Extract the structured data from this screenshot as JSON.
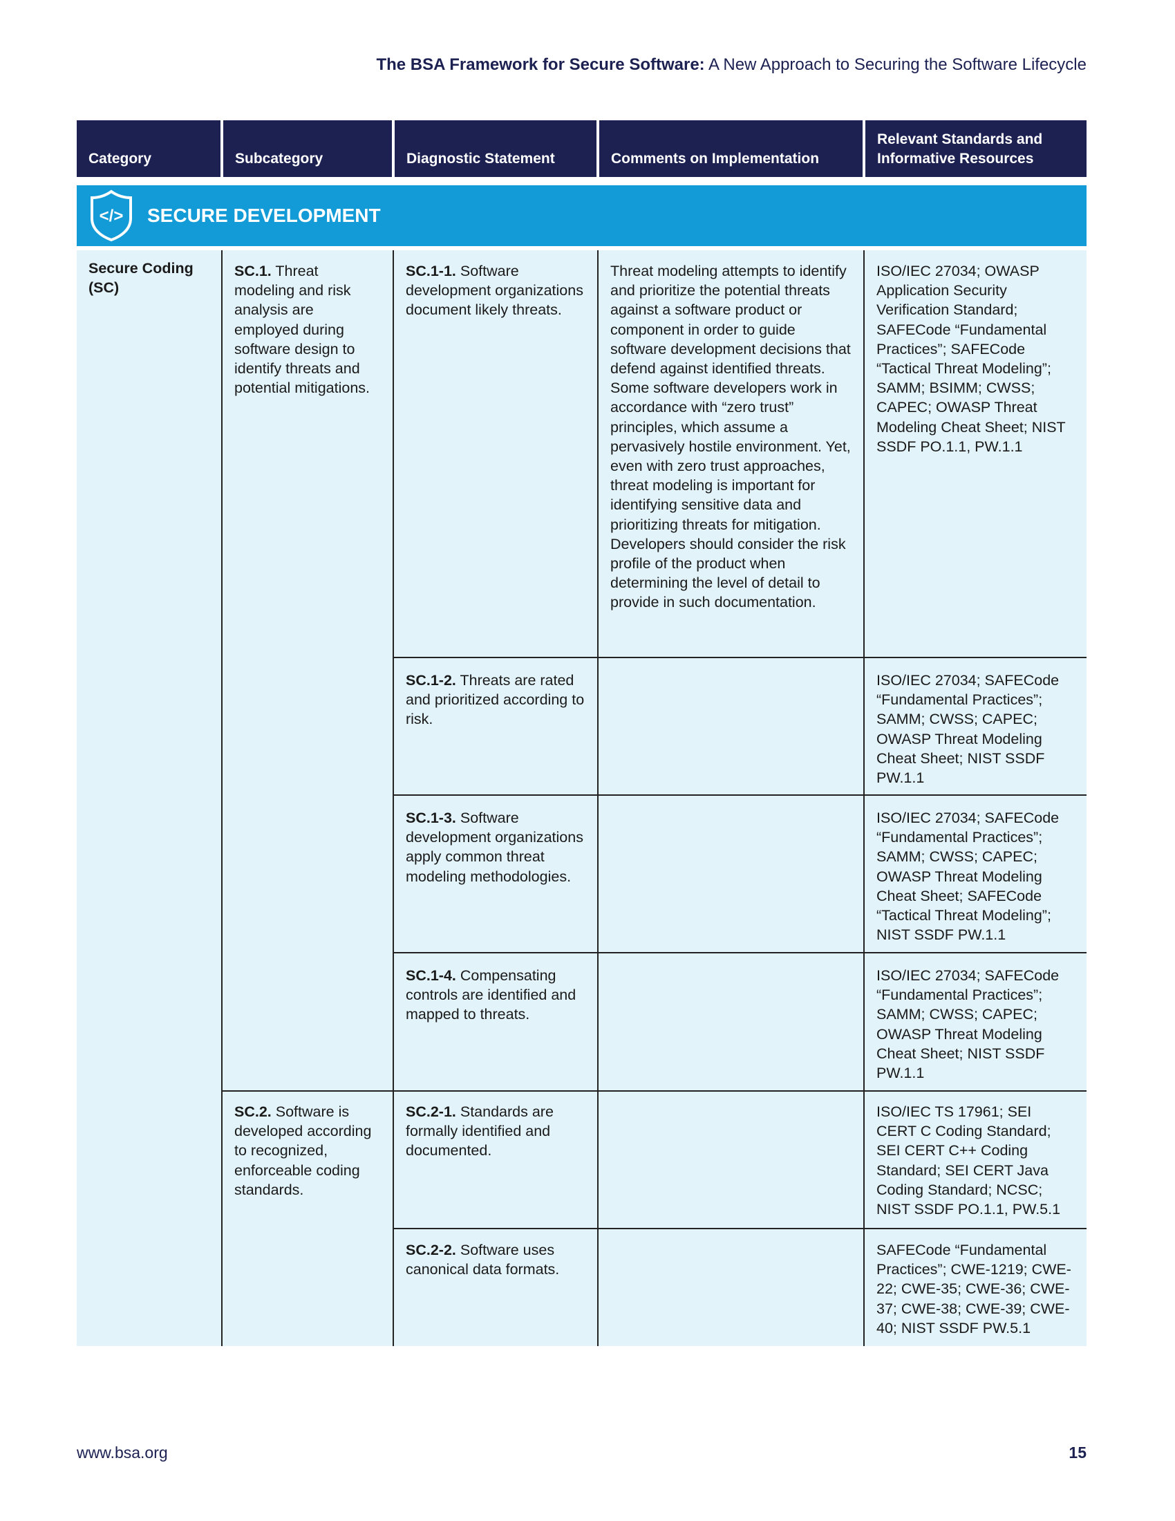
{
  "running_head": {
    "bold": "The BSA Framework for Secure Software:",
    "rest": " A New Approach to Securing the Software Lifecycle"
  },
  "columns": [
    "Category",
    "Subcategory",
    "Diagnostic Statement",
    "Comments on Implementation",
    "Relevant Standards and Informative Resources"
  ],
  "section": {
    "title": "SECURE DEVELOPMENT",
    "icon": "shield-code-icon",
    "color": "#139bd8"
  },
  "category": "Secure Coding (SC)",
  "subcategories": [
    {
      "id": "SC.1.",
      "text": " Threat modeling and risk analysis are employed during software design to identify threats and potential mitigations."
    },
    {
      "id": "SC.2.",
      "text": " Software is developed according to recognized, enforceable coding standards."
    }
  ],
  "rows": [
    {
      "id": "SC.1-1.",
      "statement": " Software development organizations document likely threats.",
      "comments": "Threat modeling attempts to identify and prioritize the potential threats against a software product or component in order to guide software development decisions that defend against identified threats. Some software developers work in accordance with “zero trust” principles, which assume a pervasively hostile environment. Yet, even with zero trust approaches, threat modeling is important for identifying sensitive data and prioritizing threats for mitigation. Developers should consider the risk profile of the product when determining the level of detail to provide in such documentation.",
      "refs": "ISO/IEC 27034; OWASP Application Security Verification Standard; SAFECode “Fundamental Practices”; SAFECode “Tactical Threat Modeling”; SAMM; BSIMM; CWSS; CAPEC; OWASP Threat Modeling Cheat Sheet; NIST SSDF PO.1.1, PW.1.1"
    },
    {
      "id": "SC.1-2.",
      "statement": " Threats are rated and prioritized according to risk.",
      "comments": "",
      "refs": "ISO/IEC 27034; SAFECode “Fundamental Practices”; SAMM; CWSS; CAPEC; OWASP Threat Modeling Cheat Sheet; NIST SSDF PW.1.1"
    },
    {
      "id": "SC.1-3.",
      "statement": " Software development organizations apply common threat modeling methodologies.",
      "comments": "",
      "refs": "ISO/IEC 27034; SAFECode “Fundamental Practices”; SAMM; CWSS; CAPEC; OWASP Threat Modeling Cheat Sheet; SAFECode “Tactical Threat Modeling”; NIST SSDF PW.1.1"
    },
    {
      "id": "SC.1-4.",
      "statement": " Compensating controls are identified and mapped to threats.",
      "comments": "",
      "refs": "ISO/IEC 27034; SAFECode “Fundamental Practices”; SAMM; CWSS; CAPEC; OWASP Threat Modeling Cheat Sheet; NIST SSDF PW.1.1"
    },
    {
      "id": "SC.2-1.",
      "statement": " Standards are formally identified and documented.",
      "comments": "",
      "refs": "ISO/IEC TS 17961; SEI CERT C Coding Standard; SEI CERT C++ Coding Standard; SEI CERT Java Coding Standard; NCSC; NIST SSDF PO.1.1, PW.5.1"
    },
    {
      "id": "SC.2-2.",
      "statement": " Software uses canonical data formats.",
      "comments": "",
      "refs": "SAFECode “Fundamental Practices”; CWE-1219; CWE-22; CWE-35; CWE-36; CWE-37; CWE-38; CWE-39; CWE-40; NIST SSDF PW.5.1"
    }
  ],
  "footer": {
    "url": "www.bsa.org",
    "page": "15"
  }
}
